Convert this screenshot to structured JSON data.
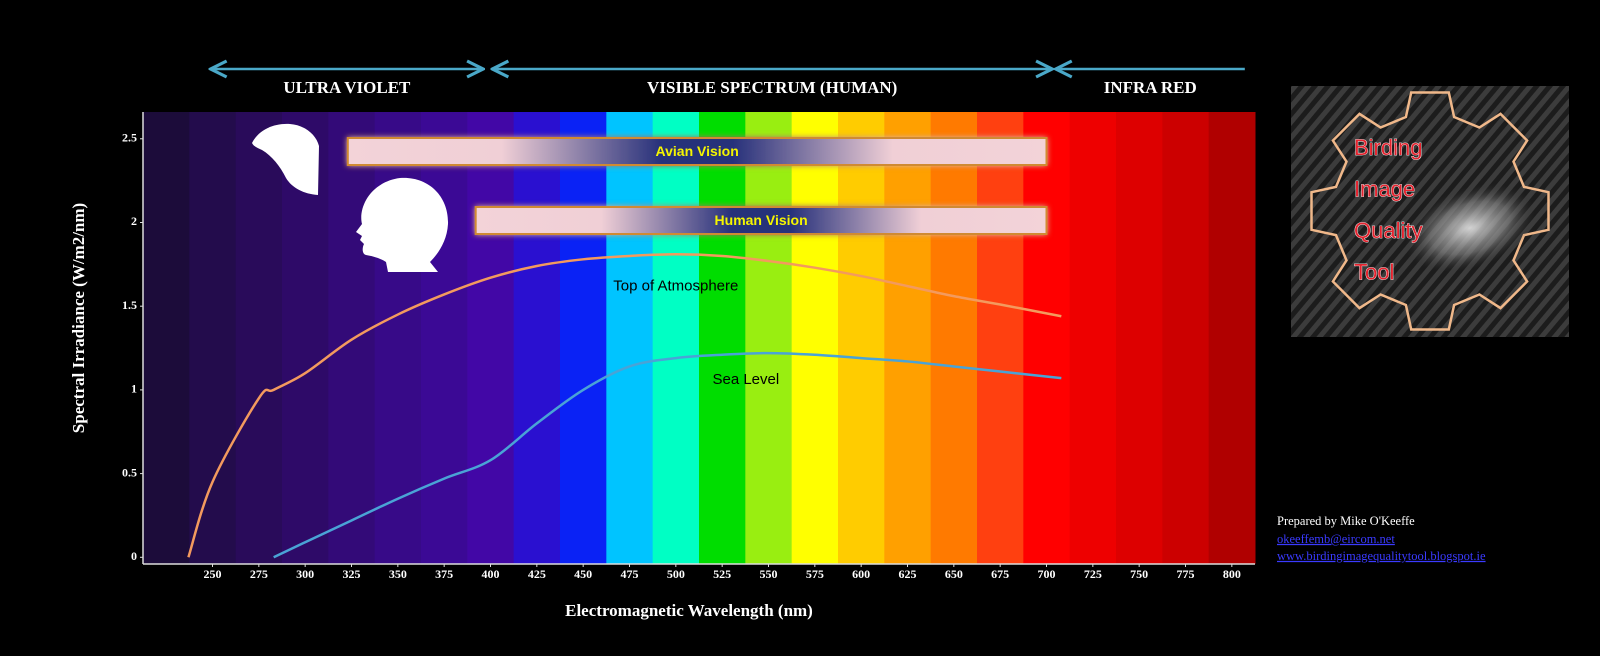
{
  "chart_data": {
    "type": "line",
    "ylabel": "Spectral Irradiance (W/m2/nm)",
    "xlabel": "Electromagnetic Wavelength (nm)",
    "regions": [
      {
        "label": "ULTRA VIOLET",
        "range": [
          249,
          396
        ]
      },
      {
        "label": "VISIBLE SPECTRUM (HUMAN)",
        "range": [
          401,
          703
        ]
      },
      {
        "label": "INFRA RED",
        "range": [
          705,
          807
        ]
      }
    ],
    "vision_bars": [
      {
        "label": "Avian Vision",
        "range": [
          323,
          700
        ]
      },
      {
        "label": "Human Vision",
        "range": [
          392,
          700
        ]
      }
    ],
    "band_centers": [
      225,
      250,
      275,
      300,
      325,
      350,
      375,
      400,
      425,
      450,
      475,
      500,
      525,
      550,
      575,
      600,
      625,
      650,
      675,
      700,
      725,
      750,
      775,
      800
    ],
    "band_colors": [
      "#1c0c3a",
      "#230c4c",
      "#290b5a",
      "#2e0a68",
      "#330a78",
      "#370a88",
      "#3b0995",
      "#4207a6",
      "#2a10d0",
      "#0a22f5",
      "#00c4ff",
      "#00ffc4",
      "#00dd00",
      "#99ee11",
      "#ffff00",
      "#ffcc00",
      "#ffa000",
      "#ff7a00",
      "#ff4010",
      "#ff0000",
      "#ee0000",
      "#dd0000",
      "#cc0000",
      "#b00000"
    ],
    "x": [
      237,
      250,
      275,
      283,
      300,
      325,
      350,
      375,
      400,
      425,
      450,
      475,
      500,
      525,
      550,
      575,
      600,
      625,
      650,
      675,
      708
    ],
    "series": [
      {
        "name": "Top of Atmosphere",
        "color": "#f39a5e",
        "values": [
          0,
          0.45,
          0.95,
          1.0,
          1.1,
          1.3,
          1.45,
          1.57,
          1.67,
          1.74,
          1.78,
          1.8,
          1.81,
          1.8,
          1.77,
          1.73,
          1.68,
          1.62,
          1.56,
          1.51,
          1.44
        ]
      },
      {
        "name": "Sea Level",
        "color": "#4aa3d6",
        "values": [
          null,
          null,
          null,
          0,
          0.09,
          0.22,
          0.35,
          0.47,
          0.58,
          0.8,
          1.0,
          1.14,
          1.19,
          1.21,
          1.22,
          1.21,
          1.19,
          1.17,
          1.14,
          1.11,
          1.07
        ]
      }
    ],
    "xlim": [
      212.5,
      812.5
    ],
    "ylim": [
      -0.04,
      2.66
    ],
    "xticks": [
      250,
      275,
      300,
      325,
      350,
      375,
      400,
      425,
      450,
      475,
      500,
      525,
      550,
      575,
      600,
      625,
      650,
      675,
      700,
      725,
      750,
      775,
      800
    ],
    "yticks": [
      0,
      0.5,
      1,
      1.5,
      2,
      2.5
    ]
  },
  "logo": {
    "lines": [
      "Birding",
      "Image",
      "Quality",
      "Tool"
    ]
  },
  "credits": {
    "author": "Prepared by Mike O'Keeffe",
    "email": "okeeffemb@eircom.net",
    "website": "www.birdingimagequalitytool.blogspot.ie"
  }
}
